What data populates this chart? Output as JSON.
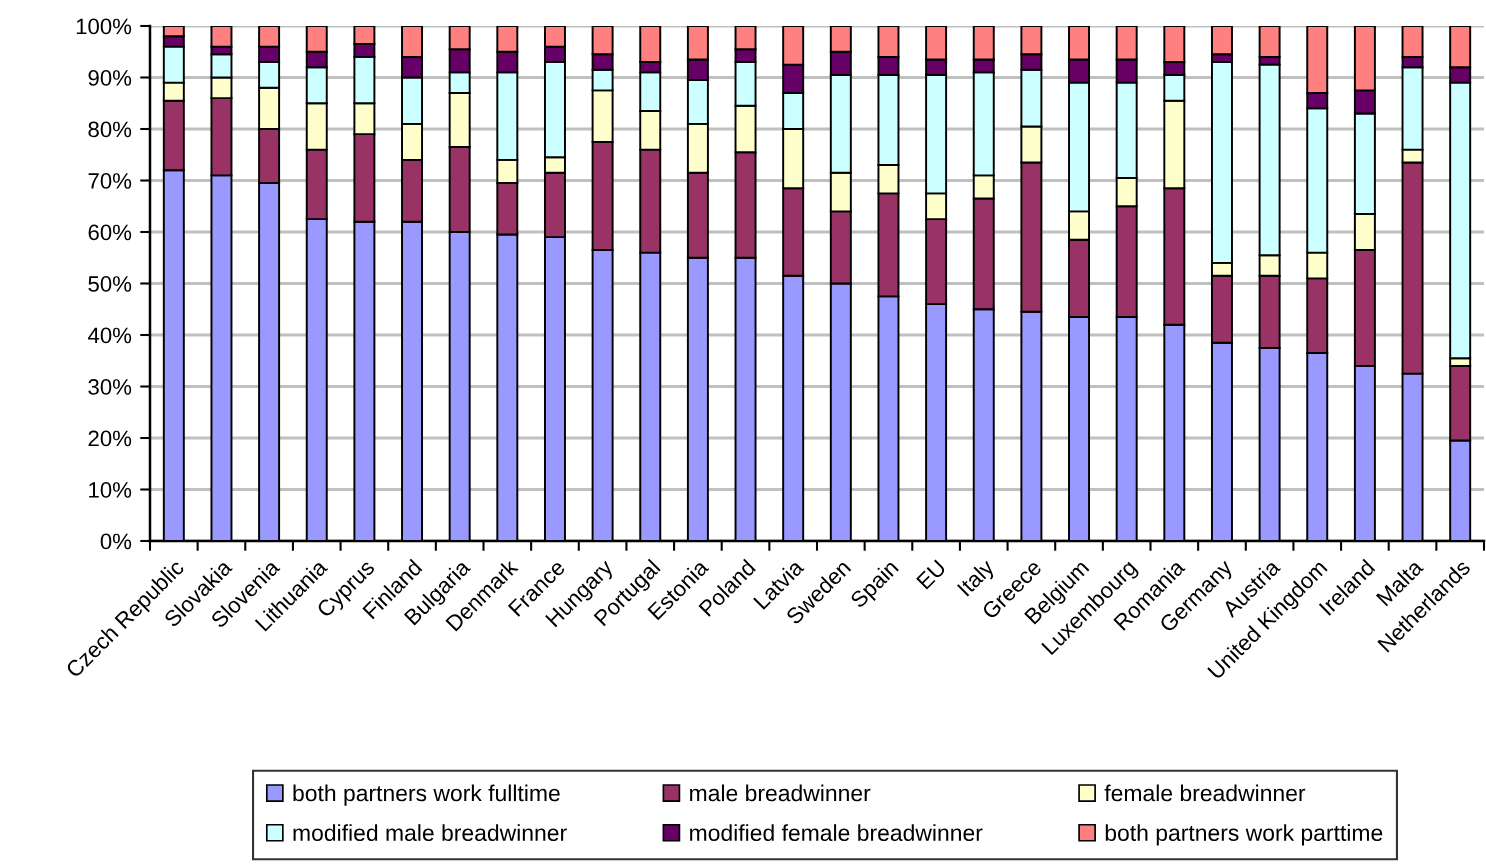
{
  "chart_data": {
    "type": "bar",
    "stacked": true,
    "categories": [
      "Czech Republic",
      "Slovakia",
      "Slovenia",
      "Lithuania",
      "Cyprus",
      "Finland",
      "Bulgaria",
      "Denmark",
      "France",
      "Hungary",
      "Portugal",
      "Estonia",
      "Poland",
      "Latvia",
      "Sweden",
      "Spain",
      "EU",
      "Italy",
      "Greece",
      "Belgium",
      "Luxembourg",
      "Romania",
      "Germany",
      "Austria",
      "United Kingdom",
      "Ireland",
      "Malta",
      "Netherlands"
    ],
    "series": [
      {
        "name": "both partners work fulltime",
        "color": "#9999ff",
        "values": [
          72,
          71,
          69.5,
          62.5,
          62,
          62,
          60,
          59.5,
          59,
          56.5,
          56,
          55,
          55,
          51.5,
          50,
          47.5,
          46,
          45,
          44.5,
          43.5,
          43.5,
          42,
          38.5,
          37.5,
          36.5,
          34,
          32.5,
          19.5
        ]
      },
      {
        "name": "male breadwinner",
        "color": "#993366",
        "values": [
          13.5,
          15,
          10.5,
          13.5,
          17,
          12,
          16.5,
          10,
          12.5,
          21,
          20,
          16.5,
          20.5,
          17,
          14,
          20,
          16.5,
          21.5,
          29,
          15,
          21.5,
          26.5,
          13,
          14,
          14.5,
          22.5,
          41,
          14.5
        ]
      },
      {
        "name": "female breadwinner",
        "color": "#ffffcc",
        "values": [
          3.5,
          4,
          8,
          9,
          6,
          7,
          10.5,
          4.5,
          3,
          10,
          7.5,
          9.5,
          9,
          11.5,
          7.5,
          5.5,
          5,
          4.5,
          7,
          5.5,
          5.5,
          17,
          2.5,
          4,
          5,
          7,
          2.5,
          1.5
        ]
      },
      {
        "name": "modified male breadwinner",
        "color": "#ccffff",
        "values": [
          7,
          4.5,
          5,
          7,
          9,
          9,
          4,
          17,
          18.5,
          4,
          7.5,
          8.5,
          8.5,
          7,
          19,
          17.5,
          23,
          20,
          11,
          25,
          18.5,
          5,
          39,
          37,
          28,
          19.5,
          16,
          53.5
        ]
      },
      {
        "name": "modified female breadwinner",
        "color": "#660066",
        "values": [
          2,
          1.5,
          3,
          3,
          2.5,
          4,
          4.5,
          4,
          3,
          3,
          2,
          4,
          2.5,
          5.5,
          4.5,
          3.5,
          3,
          2.5,
          3,
          4.5,
          4.5,
          2.5,
          1.5,
          1.5,
          3,
          4.5,
          2,
          3
        ]
      },
      {
        "name": "both partners work parttime",
        "color": "#ff8080",
        "values": [
          2,
          4,
          4,
          5,
          3.5,
          6,
          4.5,
          5,
          4,
          5.5,
          7,
          6.5,
          4.5,
          7.5,
          5,
          6,
          6.5,
          6.5,
          5.5,
          6.5,
          6.5,
          7,
          5.5,
          6,
          13,
          12.5,
          6,
          8
        ]
      }
    ],
    "ylim": [
      0,
      100
    ],
    "yticks": [
      {
        "value": 0,
        "label": "0%"
      },
      {
        "value": 10,
        "label": "10%"
      },
      {
        "value": 20,
        "label": "20%"
      },
      {
        "value": 30,
        "label": "30%"
      },
      {
        "value": 40,
        "label": "40%"
      },
      {
        "value": 50,
        "label": "50%"
      },
      {
        "value": 60,
        "label": "60%"
      },
      {
        "value": 70,
        "label": "70%"
      },
      {
        "value": 80,
        "label": "80%"
      },
      {
        "value": 90,
        "label": "90%"
      },
      {
        "value": 100,
        "label": "100%"
      }
    ],
    "grid": "y",
    "legend": "bottom"
  }
}
